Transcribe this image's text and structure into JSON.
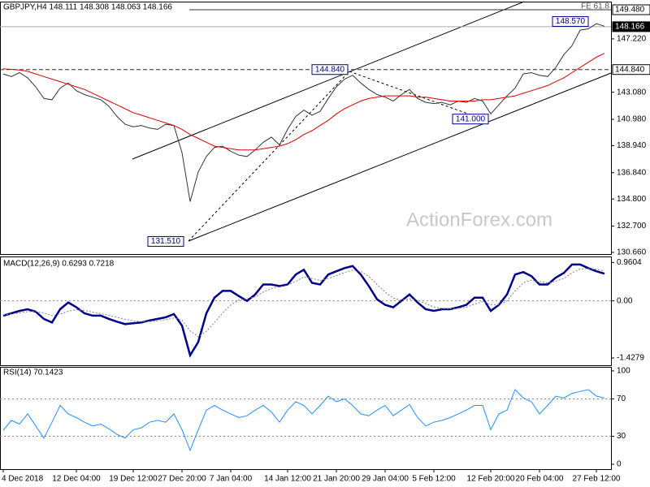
{
  "chart_data": [
    {
      "type": "line",
      "title": "GBPJPY,H4  148.111 148.308 148.063 148.166",
      "watermark": "ActionForex.com",
      "fe_label": "FE 61.8",
      "ylim": [
        130.53,
        150.11
      ],
      "yticks": [
        {
          "value": 130.66,
          "label": "130.660"
        },
        {
          "value": 132.7,
          "label": "132.700"
        },
        {
          "value": 134.8,
          "label": "134.800"
        },
        {
          "value": 136.84,
          "label": "136.840"
        },
        {
          "value": 138.94,
          "label": "138.940"
        },
        {
          "value": 140.98,
          "label": "140.980"
        },
        {
          "value": 143.08,
          "label": "143.080"
        },
        {
          "value": 147.22,
          "label": "147.220"
        }
      ],
      "levels": [
        {
          "value": 149.48,
          "label": "149.480",
          "style": "solid"
        },
        {
          "value": 144.84,
          "label": "144.840",
          "style": "dash"
        },
        {
          "value": 148.166,
          "label": "148.166",
          "style": "current"
        }
      ],
      "annotations": [
        {
          "value": 131.51,
          "label": "131.510"
        },
        {
          "value": 144.84,
          "label": "144.840"
        },
        {
          "value": 141.0,
          "label": "141.000"
        },
        {
          "value": 148.57,
          "label": "148.570"
        }
      ],
      "series": [
        {
          "color": "#333333",
          "values": [
            144.5,
            144.3,
            144.6,
            144.2,
            143.5,
            142.6,
            142.5,
            143.4,
            143.8,
            143.2,
            142.9,
            142.7,
            142.5,
            142.0,
            141.2,
            140.6,
            140.4,
            140.5,
            140.3,
            140.2,
            140.6,
            140.5,
            138.4,
            134.6,
            136.9,
            138.1,
            138.8,
            138.9,
            138.5,
            138.2,
            138.1,
            138.6,
            139.2,
            139.6,
            139.0,
            140.2,
            141.2,
            141.7,
            141.3,
            141.6,
            142.6,
            143.5,
            144.1,
            144.4,
            143.8,
            143.3,
            142.9,
            142.7,
            142.4,
            142.9,
            143.3,
            142.6,
            142.3,
            142.2,
            142.3,
            142.1,
            142.4,
            142.3,
            142.6,
            142.4,
            141.4,
            142.1,
            142.8,
            143.4,
            144.5,
            144.6,
            144.4,
            144.3,
            145.0,
            146.0,
            146.7,
            147.9,
            148.0,
            148.4,
            148.2
          ]
        },
        {
          "color": "#e00000",
          "values": [
            144.9,
            144.85,
            144.8,
            144.7,
            144.5,
            144.3,
            144.1,
            143.9,
            143.7,
            143.5,
            143.3,
            143.0,
            142.7,
            142.4,
            142.1,
            141.8,
            141.5,
            141.3,
            141.1,
            140.9,
            140.7,
            140.5,
            140.2,
            139.8,
            139.5,
            139.2,
            138.9,
            138.8,
            138.7,
            138.6,
            138.6,
            138.6,
            138.7,
            138.8,
            138.9,
            139.1,
            139.4,
            139.8,
            140.1,
            140.5,
            140.9,
            141.4,
            141.8,
            142.1,
            142.4,
            142.6,
            142.7,
            142.8,
            142.8,
            142.8,
            142.8,
            142.7,
            142.7,
            142.6,
            142.5,
            142.4,
            142.4,
            142.4,
            142.4,
            142.5,
            142.5,
            142.6,
            142.7,
            142.8,
            143.0,
            143.2,
            143.4,
            143.6,
            143.9,
            144.2,
            144.6,
            145.0,
            145.4,
            145.8,
            146.1
          ]
        }
      ]
    },
    {
      "type": "line",
      "title": "MACD(12,26,9) 0.6293 0.7218",
      "ylim": [
        -1.61,
        1.11
      ],
      "yticks": [
        {
          "value": -1.4279,
          "label": "-1.4279"
        },
        {
          "value": 0,
          "label": "0.00"
        },
        0.9604
      ],
      "levels": [
        0
      ],
      "series": [
        {
          "color": "#00008b",
          "bold": true,
          "values": [
            -0.37,
            -0.31,
            -0.25,
            -0.21,
            -0.27,
            -0.45,
            -0.54,
            -0.21,
            -0.04,
            -0.16,
            -0.31,
            -0.37,
            -0.37,
            -0.45,
            -0.52,
            -0.58,
            -0.56,
            -0.54,
            -0.49,
            -0.45,
            -0.41,
            -0.33,
            -0.62,
            -1.36,
            -1.03,
            -0.31,
            0.08,
            0.25,
            0.25,
            0.12,
            0.0,
            0.16,
            0.41,
            0.41,
            0.37,
            0.41,
            0.66,
            0.78,
            0.45,
            0.41,
            0.66,
            0.74,
            0.82,
            0.87,
            0.66,
            0.37,
            0.04,
            -0.1,
            -0.16,
            0.0,
            0.16,
            -0.04,
            -0.21,
            -0.25,
            -0.21,
            -0.21,
            -0.16,
            -0.1,
            0.08,
            0.08,
            -0.25,
            -0.1,
            0.16,
            0.66,
            0.72,
            0.62,
            0.41,
            0.41,
            0.58,
            0.7,
            0.91,
            0.91,
            0.82,
            0.74,
            0.68
          ]
        },
        {
          "color": "#808080",
          "dash": true,
          "values": [
            -0.35,
            -0.33,
            -0.3,
            -0.27,
            -0.26,
            -0.3,
            -0.37,
            -0.33,
            -0.26,
            -0.22,
            -0.24,
            -0.28,
            -0.32,
            -0.36,
            -0.41,
            -0.46,
            -0.5,
            -0.52,
            -0.52,
            -0.5,
            -0.47,
            -0.43,
            -0.48,
            -0.75,
            -0.9,
            -0.76,
            -0.54,
            -0.3,
            -0.1,
            0.02,
            0.06,
            0.1,
            0.22,
            0.31,
            0.35,
            0.39,
            0.49,
            0.6,
            0.56,
            0.51,
            0.56,
            0.63,
            0.71,
            0.77,
            0.74,
            0.61,
            0.41,
            0.22,
            0.07,
            0.02,
            0.05,
            0.02,
            -0.07,
            -0.15,
            -0.19,
            -0.2,
            -0.19,
            -0.16,
            -0.08,
            -0.02,
            -0.09,
            -0.1,
            0.0,
            0.25,
            0.45,
            0.52,
            0.48,
            0.45,
            0.49,
            0.56,
            0.7,
            0.8,
            0.81,
            0.79,
            0.75
          ]
        }
      ]
    },
    {
      "type": "line",
      "title": "RSI(14) 70.1423",
      "ylim": [
        -5.2,
        104.3
      ],
      "yticks": [
        0,
        30,
        70,
        100
      ],
      "levels": [
        30,
        70
      ],
      "categories": [
        "4 Dec 2018",
        null,
        null,
        null,
        null,
        null,
        null,
        null,
        null,
        "12 Dec 04:00",
        null,
        null,
        null,
        null,
        null,
        null,
        "19 Dec 12:00",
        null,
        null,
        null,
        null,
        null,
        "27 Dec 20:00",
        null,
        null,
        null,
        null,
        null,
        "7 Jan 04:00",
        null,
        null,
        null,
        null,
        null,
        null,
        "14 Jan 12:00",
        null,
        null,
        null,
        null,
        null,
        "21 Jan 20:00",
        null,
        null,
        null,
        null,
        null,
        "29 Jan 04:00",
        null,
        null,
        null,
        null,
        null,
        "5 Feb 12:00",
        null,
        null,
        null,
        null,
        null,
        null,
        "12 Feb 20:00",
        null,
        null,
        null,
        null,
        null,
        "20 Feb 04:00",
        null,
        null,
        null,
        null,
        null,
        null,
        "27 Feb 12:00",
        null
      ],
      "series": [
        {
          "color": "#1e90ff",
          "values": [
            36.5,
            47,
            43,
            54,
            41,
            28,
            45,
            63,
            54,
            50,
            45,
            41,
            43,
            38,
            32,
            28,
            37,
            39,
            45,
            47,
            45,
            54,
            37,
            15,
            37,
            58,
            63,
            58,
            54,
            50,
            52,
            58,
            63,
            56,
            45,
            58,
            67,
            63,
            54,
            63,
            73,
            67,
            70,
            63,
            54,
            52,
            58,
            63,
            52,
            58,
            64,
            50,
            41,
            45,
            47,
            50,
            54,
            58,
            63,
            63,
            37,
            54,
            58,
            80,
            71,
            67,
            54,
            63,
            73,
            71,
            76,
            78,
            80,
            73,
            71
          ]
        }
      ]
    }
  ]
}
